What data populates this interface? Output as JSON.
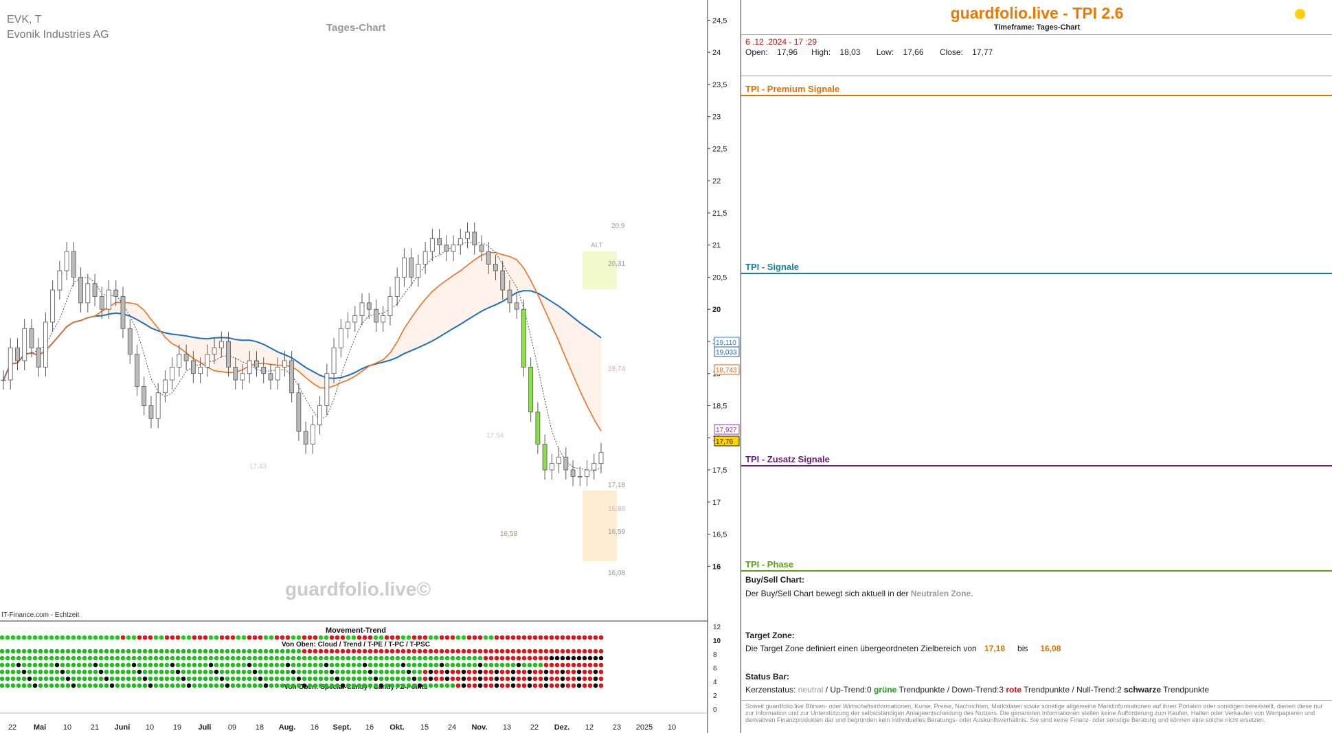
{
  "header": {
    "symbol": "EVK, T",
    "company": "Evonik Industries AG",
    "timeframe_label": "Tages-Chart",
    "watermark": "guardfolio.live©",
    "data_source": "IT-Finance.com - Echtzeit"
  },
  "chart_data": {
    "type": "candlestick",
    "y_axis": {
      "min": 15.8,
      "max": 24.6,
      "ticks": [
        "24,5",
        "24",
        "23,5",
        "23",
        "22,5",
        "22",
        "21,5",
        "21",
        "20,5",
        "20",
        "19,5",
        "19",
        "18,5",
        "18",
        "17,5",
        "17",
        "16,5",
        "16"
      ]
    },
    "x_axis_ticks": [
      "22",
      "Mai",
      "10",
      "21",
      "Juni",
      "10",
      "19",
      "Juli",
      "09",
      "18",
      "Aug.",
      "16",
      "Sept.",
      "16",
      "Okt.",
      "15",
      "24",
      "Nov.",
      "13",
      "22",
      "Dez.",
      "12",
      "23",
      "2025",
      "10"
    ],
    "price_tags": [
      {
        "label": "19,110",
        "color": "#2a7fd4"
      },
      {
        "label": "19,033",
        "color": "#1a5fb4"
      },
      {
        "label": "18,743",
        "color": "#e06010"
      },
      {
        "label": "17,927",
        "color": "#9a3aa8"
      },
      {
        "label": "17,76",
        "color": "#222222",
        "bg": "#ffd400"
      }
    ],
    "annotations": [
      "20,9",
      "ALT",
      "20,31",
      "18,74",
      "17,94",
      "17,43",
      "17,18",
      "16,88",
      "16,59",
      "16,58",
      "16,08"
    ],
    "closes": [
      18.9,
      19.4,
      19.2,
      19.7,
      19.4,
      19.1,
      19.8,
      20.3,
      20.6,
      20.9,
      20.5,
      20.1,
      20.4,
      20.2,
      20.0,
      20.3,
      20.2,
      19.7,
      19.3,
      18.8,
      18.5,
      18.3,
      18.7,
      18.9,
      19.1,
      19.3,
      19.2,
      19.0,
      19.1,
      19.3,
      19.4,
      19.5,
      19.1,
      18.9,
      19.0,
      19.2,
      19.1,
      19.0,
      18.9,
      19.1,
      19.2,
      18.7,
      18.1,
      17.9,
      18.2,
      18.5,
      19.0,
      19.4,
      19.7,
      19.8,
      19.9,
      20.1,
      20.0,
      19.8,
      19.9,
      20.2,
      20.5,
      20.8,
      20.5,
      20.7,
      20.9,
      21.1,
      21.0,
      20.9,
      21.0,
      21.1,
      21.2,
      21.0,
      20.9,
      20.7,
      20.6,
      20.3,
      20.1,
      20.0,
      19.1,
      18.4,
      17.9,
      17.5,
      17.6,
      17.7,
      17.5,
      17.4,
      17.4,
      17.5,
      17.6,
      17.77
    ],
    "indicators": {
      "blue_ma_end": 19.033,
      "orange_ma_end": 18.743,
      "pink_ma_end": 17.927
    },
    "target_zone": {
      "top": 17.18,
      "bottom": 16.08
    },
    "alt_zone": {
      "top": 20.9,
      "bottom": 20.31
    },
    "subpanel": {
      "title": "Movement-Trend",
      "label2": "Von Oben: Cloud / Trend / T-PE / T-PC / T-PSC",
      "label3": "Von Oben: Special-Candy / Candy / Z-Points",
      "y_ticks": [
        "12",
        "10",
        "8",
        "6",
        "4",
        "2",
        "0"
      ]
    }
  },
  "panel": {
    "brand": "guardfolio.live - TPI 2.6",
    "timeframe": "Timeframe: Tages-Chart",
    "date": "6 .12 .2024  - 17 :29",
    "ohlc": "Open:    17,96      High:    18,03       Low:    17,66       Close:    17,77",
    "sections": [
      {
        "label": "TPI - Premium Signale",
        "color": "#e07000"
      },
      {
        "label": "TPI - Signale",
        "color": "#1a7f9a"
      },
      {
        "label": "TPI - Zusatz Signale",
        "color": "#6a1a7a"
      },
      {
        "label": "TPI - Phase",
        "color": "#5aa010"
      }
    ],
    "buysell_title": "Buy/Sell Chart:",
    "buysell_text": "Der Buy/Sell Chart bewegt sich aktuell in der ",
    "buysell_zone": "Neutralen Zone.",
    "target_title": "Target Zone:",
    "target_text": "Die Target Zone definiert einen übergeordneten Zielbereich von ",
    "target_from": "17,18",
    "target_bis": "bis",
    "target_to": "16,08",
    "status_title": "Status Bar:",
    "status_kerzen": "Kerzenstatus: ",
    "status_neutral": "neutral",
    "status_up": "  / Up-Trend:0 ",
    "status_gruene": "grüne",
    "status_tp1": " Trendpunkte  / Down-Trend:3 ",
    "status_rote": "rote",
    "status_tp2": " Trendpunkte / Null-Trend:2 ",
    "status_schwarze": "schwarze",
    "status_tp3": " Trendpunkte",
    "disclaimer": "Soweit guardfolio.live Börsen- oder Wirtschaftsinformationen, Kurse, Preise, Nachrichten, Marktdaten sowie sonstige allgemeine Marktinformationen auf ihren Portalen oder sonstigen bereitstellt, dienen diese nur zur Information und zur Unterstützung der selbstständigen Anlageentscheidung des Nutzers. Die genannten Informationen stellen keine Aufforderung zum Kaufen, Halten oder Verkaufen von Wertpapieren und derivativen Finanzprodukten dar und begründen kein individuelles Beratungs- oder Auskunftsverhältnis. Sie sind keine Finanz- oder sonstige Beratung und können eine solche nicht ersetzen."
  }
}
